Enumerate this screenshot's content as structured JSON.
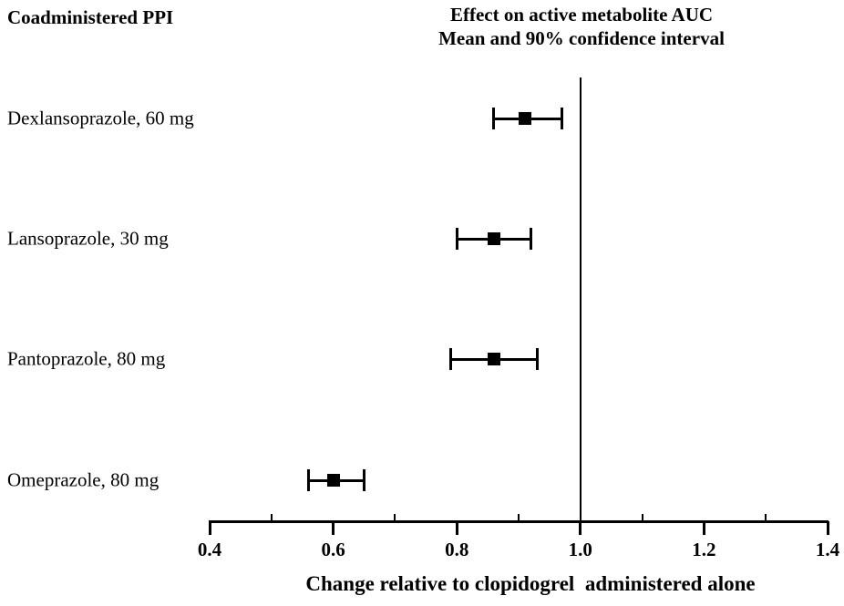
{
  "chart_data": {
    "type": "scatter",
    "variant": "forest_plot",
    "title": "Effect on active metabolite AUC",
    "subtitle": "Mean and 90% confidence interval",
    "row_column_header": "Coadministered PPI",
    "xlabel": "Change relative to clopidogrel  administered alone",
    "confidence_level": "90%",
    "rows": [
      {
        "label": "Dexlansoprazole, 60 mg",
        "mean": 0.91,
        "ci_low": 0.86,
        "ci_high": 0.97
      },
      {
        "label": "Lansoprazole, 30 mg",
        "mean": 0.86,
        "ci_low": 0.8,
        "ci_high": 0.92
      },
      {
        "label": "Pantoprazole, 80 mg",
        "mean": 0.86,
        "ci_low": 0.79,
        "ci_high": 0.93
      },
      {
        "label": "Omeprazole, 80 mg",
        "mean": 0.6,
        "ci_low": 0.56,
        "ci_high": 0.65
      }
    ],
    "xlim": [
      0.4,
      1.4
    ],
    "x_major_ticks": [
      {
        "v": 0.4,
        "label": "0.4"
      },
      {
        "v": 0.6,
        "label": "0.6"
      },
      {
        "v": 0.8,
        "label": "0.8"
      },
      {
        "v": 1.0,
        "label": "1.0"
      },
      {
        "v": 1.2,
        "label": "1.2"
      },
      {
        "v": 1.4,
        "label": "1.4"
      }
    ],
    "x_minor_ticks": [
      0.5,
      0.7,
      0.9,
      1.1,
      1.3
    ],
    "reference_line_x": 1.0,
    "grid": false,
    "legend_position": "none",
    "marker": "filled-square",
    "colors": {
      "foreground": "#000000",
      "background": "#ffffff"
    }
  }
}
